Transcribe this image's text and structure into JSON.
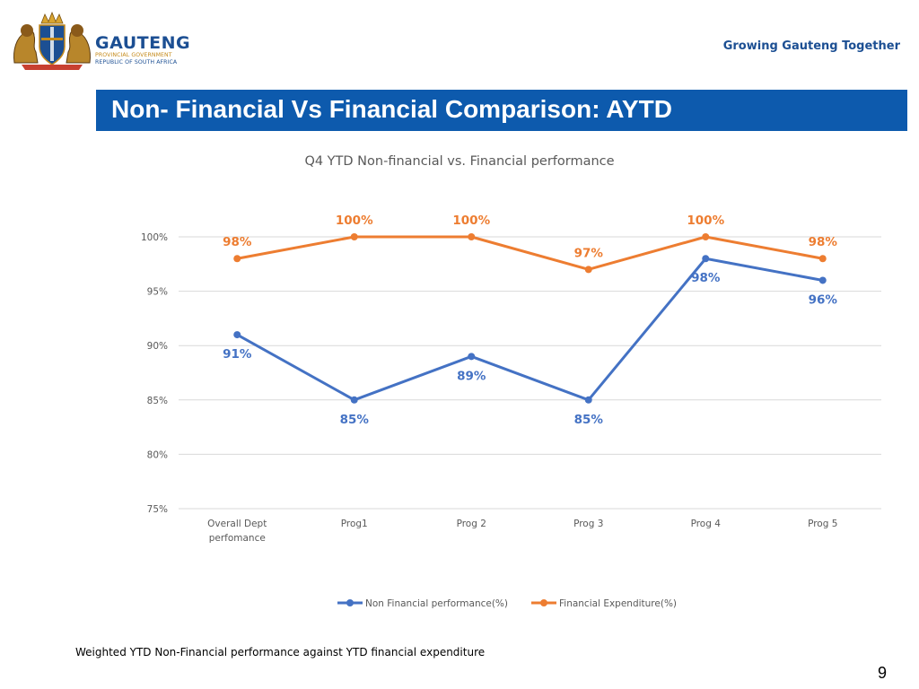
{
  "header": {
    "brand_name": "GAUTENG",
    "brand_line1": "PROVINCIAL GOVERNMENT",
    "brand_line2": "REPUBLIC OF SOUTH AFRICA",
    "tagline": "Growing Gauteng Together"
  },
  "slide": {
    "title": "Non- Financial Vs Financial Comparison: AYTD",
    "footnote": "Weighted YTD Non-Financial performance against YTD financial expenditure",
    "page_number": "9"
  },
  "colors": {
    "title_bar": "#0d5aad",
    "brand_blue": "#1c4f93",
    "non_financial": "#4472c4",
    "financial": "#ed7d31"
  },
  "chart_data": {
    "type": "line",
    "title": "Q4 YTD Non-financial vs. Financial performance",
    "categories": [
      [
        "Overall Dept",
        "perfomance"
      ],
      [
        "Prog1"
      ],
      [
        "Prog 2"
      ],
      [
        "Prog 3"
      ],
      [
        "Prog 4"
      ],
      [
        "Prog 5"
      ]
    ],
    "series": [
      {
        "name": "Non Financial performance(%)",
        "values": [
          91,
          85,
          89,
          85,
          98,
          96
        ],
        "labels": [
          "91%",
          "85%",
          "89%",
          "85%",
          "98%",
          "96%"
        ],
        "label_position": [
          "below",
          "below",
          "below",
          "below",
          "below",
          "below"
        ]
      },
      {
        "name": "Financial Expenditure(%)",
        "values": [
          98,
          100,
          100,
          97,
          100,
          98
        ],
        "labels": [
          "98%",
          "100%",
          "100%",
          "97%",
          "100%",
          "98%"
        ],
        "label_position": [
          "above",
          "above",
          "above",
          "above",
          "above",
          "above"
        ]
      }
    ],
    "y_ticks": [
      "75%",
      "80%",
      "85%",
      "90%",
      "95%",
      "100%"
    ],
    "ylim": [
      75,
      100
    ],
    "grid": true,
    "legend": "bottom"
  }
}
